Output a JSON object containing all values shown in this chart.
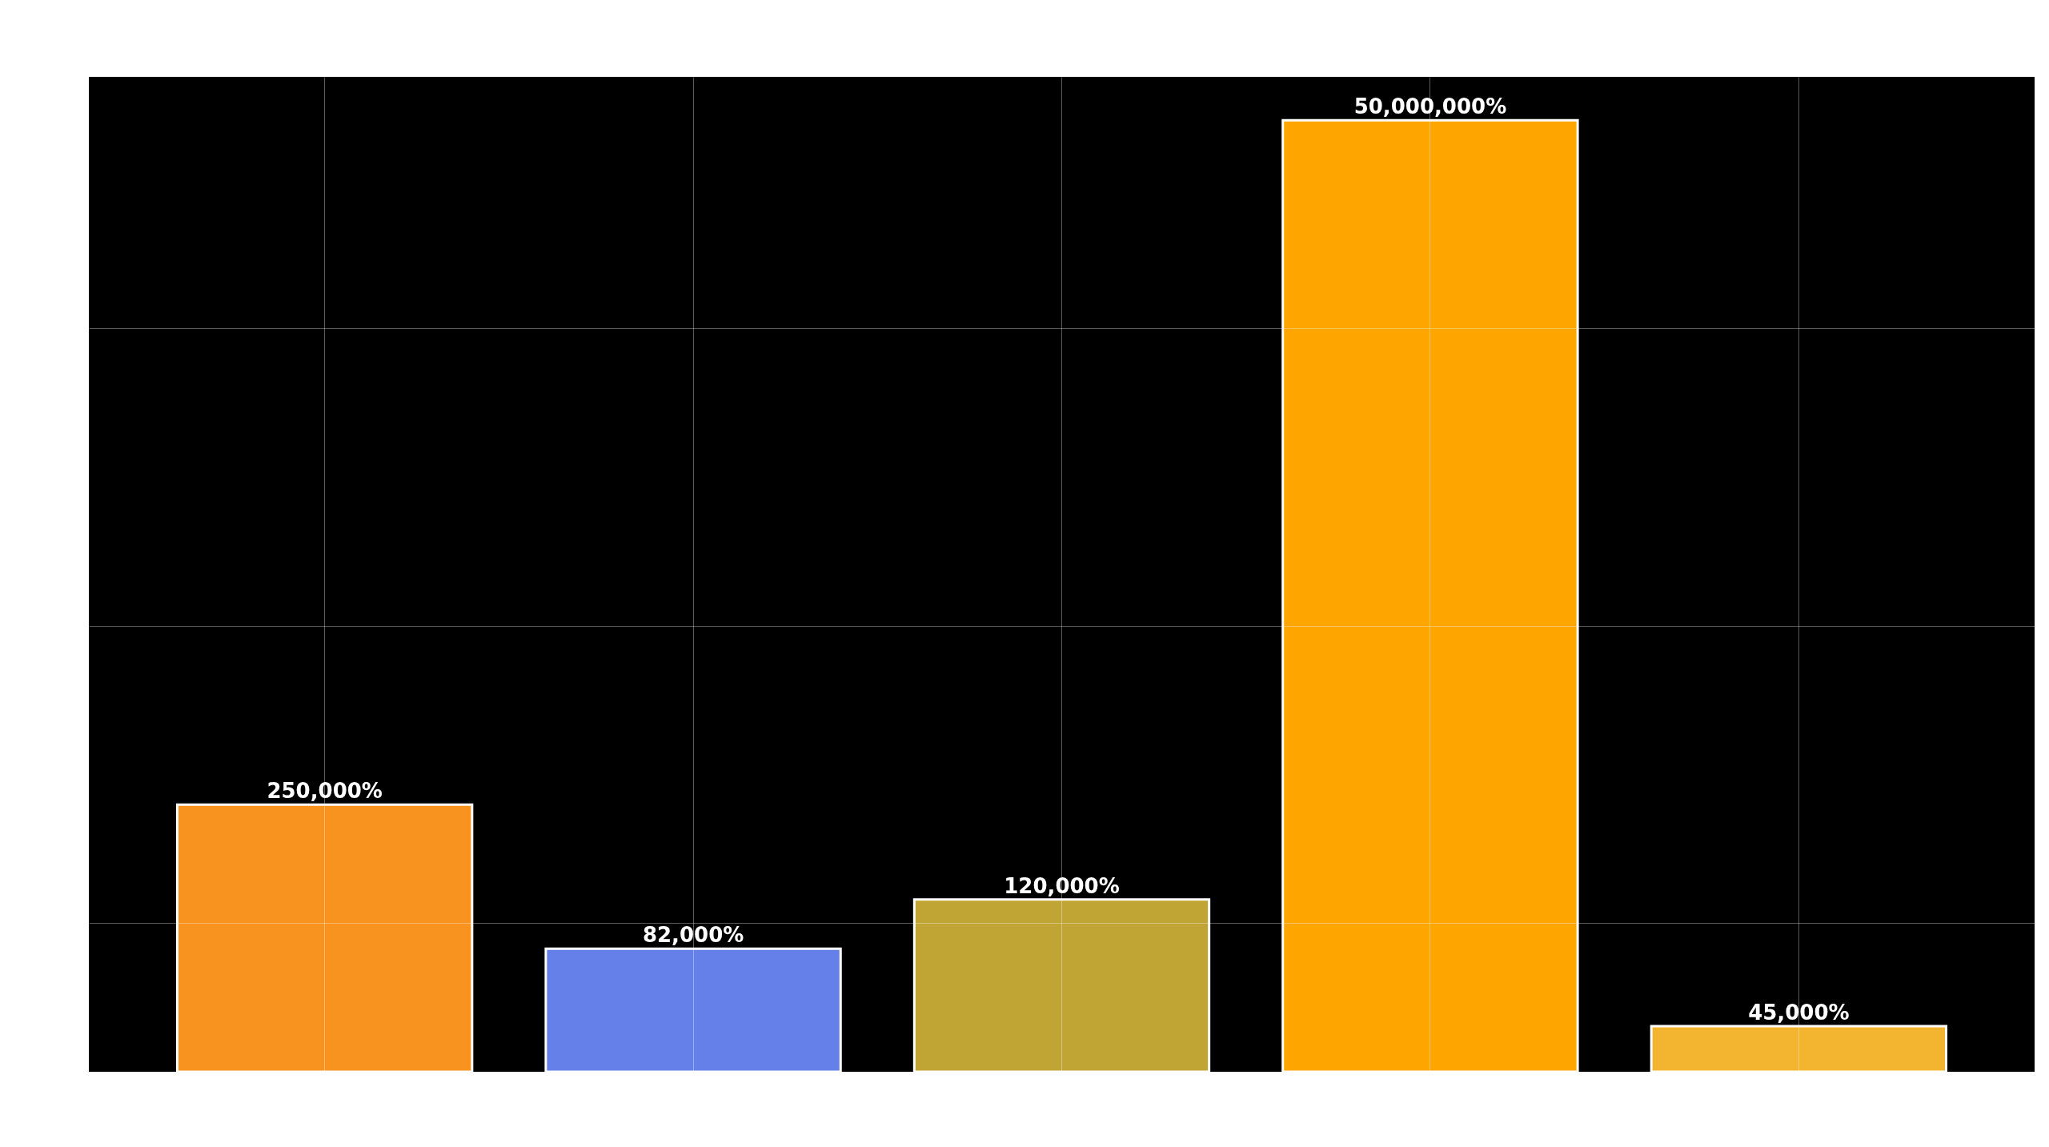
{
  "chart_data": {
    "type": "bar",
    "categories": [
      null,
      null,
      null,
      null,
      null
    ],
    "values": [
      250000,
      82000,
      120000,
      50000000,
      45000
    ],
    "colors": [
      "#f7931e",
      "#6680ea",
      "#c0a535",
      "#ffa500",
      "#f3b52f"
    ],
    "value_labels": [
      "250,000%",
      "82,000%",
      "120,000%",
      "50,000,000%",
      "45,000%"
    ],
    "log": true,
    "ylim": [
      31623,
      70000000
    ],
    "yticks": [
      {
        "value": 100000,
        "label": null
      },
      {
        "value": 1000000,
        "label": null
      },
      {
        "value": 10000000,
        "label": null
      }
    ],
    "grid": true
  }
}
